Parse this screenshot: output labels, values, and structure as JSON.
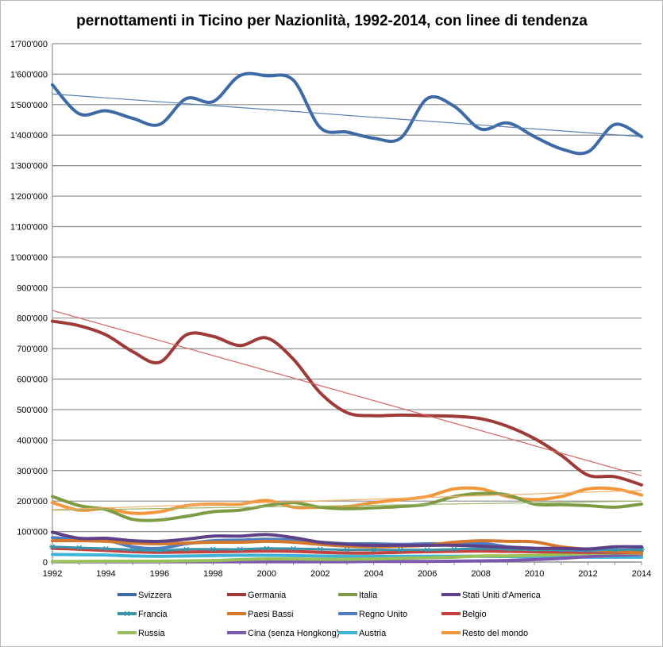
{
  "chart_data": {
    "type": "line",
    "title": "pernottamenti in Ticino per Nazionlità, 1992-2014, con linee di tendenza",
    "xlabel": "",
    "ylabel": "",
    "x": [
      1992,
      1993,
      1994,
      1995,
      1996,
      1997,
      1998,
      1999,
      2000,
      2001,
      2002,
      2003,
      2004,
      2005,
      2006,
      2007,
      2008,
      2009,
      2010,
      2011,
      2012,
      2013,
      2014
    ],
    "x_ticks": [
      1992,
      1994,
      1996,
      1998,
      2000,
      2002,
      2004,
      2006,
      2008,
      2010,
      2012,
      2014
    ],
    "ylim": [
      0,
      1700000
    ],
    "y_ticks": [
      0,
      100000,
      200000,
      300000,
      400000,
      500000,
      600000,
      700000,
      800000,
      900000,
      1000000,
      1100000,
      1200000,
      1300000,
      1400000,
      1500000,
      1600000,
      1700000
    ],
    "y_tick_labels": [
      "0",
      "100'000",
      "200'000",
      "300'000",
      "400'000",
      "500'000",
      "600'000",
      "700'000",
      "800'000",
      "900'000",
      "1'000'000",
      "1'100'000",
      "1'200'000",
      "1'300'000",
      "1'400'000",
      "1'500'000",
      "1'600'000",
      "1'700'000"
    ],
    "grid": true,
    "legend_position": "bottom",
    "series": [
      {
        "name": "Svizzera",
        "color": "#3c6aa6",
        "width": 4,
        "values": [
          1565000,
          1470000,
          1480000,
          1455000,
          1435000,
          1520000,
          1510000,
          1595000,
          1595000,
          1580000,
          1425000,
          1410000,
          1390000,
          1390000,
          1520000,
          1495000,
          1420000,
          1440000,
          1395000,
          1355000,
          1345000,
          1435000,
          1395000
        ]
      },
      {
        "name": "Germania",
        "color": "#9e3b38",
        "width": 4,
        "values": [
          790000,
          775000,
          745000,
          690000,
          655000,
          745000,
          740000,
          710000,
          735000,
          665000,
          555000,
          490000,
          480000,
          482000,
          480000,
          478000,
          470000,
          445000,
          405000,
          350000,
          285000,
          280000,
          253000
        ]
      },
      {
        "name": "Italia",
        "color": "#7e9b44",
        "width": 4,
        "values": [
          215000,
          185000,
          172000,
          140000,
          138000,
          150000,
          165000,
          170000,
          185000,
          195000,
          180000,
          175000,
          178000,
          182000,
          190000,
          215000,
          225000,
          220000,
          190000,
          188000,
          185000,
          180000,
          190000
        ]
      },
      {
        "name": "Stati Uniti d'America",
        "color": "#5e4088",
        "width": 4,
        "values": [
          98000,
          78000,
          78000,
          70000,
          68000,
          75000,
          85000,
          85000,
          90000,
          80000,
          65000,
          58000,
          55000,
          55000,
          55000,
          55000,
          52000,
          48000,
          45000,
          45000,
          43000,
          50000,
          50000
        ]
      },
      {
        "name": "Francia",
        "color": "#3a93a8",
        "width": 3,
        "marker": "star",
        "values": [
          50000,
          47000,
          44000,
          40000,
          38000,
          42000,
          42000,
          42000,
          45000,
          44000,
          42000,
          40000,
          40000,
          40000,
          40000,
          42000,
          44000,
          42000,
          40000,
          40000,
          40000,
          40000,
          42000
        ]
      },
      {
        "name": "Paesi Bassi",
        "color": "#d3782c",
        "width": 4,
        "values": [
          70000,
          70000,
          68000,
          62000,
          60000,
          62000,
          65000,
          65000,
          68000,
          65000,
          58000,
          52000,
          50000,
          52000,
          55000,
          65000,
          70000,
          68000,
          66000,
          50000,
          42000,
          35000,
          30000
        ]
      },
      {
        "name": "Regno Unito",
        "color": "#4f7fc3",
        "width": 4,
        "values": [
          80000,
          75000,
          72000,
          50000,
          45000,
          60000,
          70000,
          72000,
          75000,
          72000,
          65000,
          60000,
          60000,
          58000,
          60000,
          60000,
          62000,
          50000,
          45000,
          40000,
          38000,
          36000,
          35000
        ]
      },
      {
        "name": "Belgio",
        "color": "#c4433f",
        "width": 4,
        "values": [
          45000,
          42000,
          38000,
          34000,
          32000,
          33000,
          34000,
          35000,
          36000,
          35000,
          32000,
          30000,
          30000,
          32000,
          34000,
          35000,
          36000,
          35000,
          34000,
          33000,
          32000,
          32000,
          30000
        ]
      },
      {
        "name": "Russia",
        "color": "#9ac05a",
        "width": 4,
        "values": [
          2000,
          2000,
          3000,
          3000,
          3000,
          4000,
          5000,
          8000,
          10000,
          10000,
          9000,
          9000,
          10000,
          12000,
          14000,
          16000,
          20000,
          20000,
          22000,
          25000,
          28000,
          30000,
          28000
        ]
      },
      {
        "name": "Cina (senza Hongkong)",
        "color": "#7b58ae",
        "width": 4,
        "values": [
          1000,
          1000,
          1000,
          1000,
          1000,
          1000,
          1000,
          1000,
          1000,
          1000,
          1000,
          1000,
          2000,
          2000,
          2000,
          3000,
          4000,
          5000,
          8000,
          12000,
          18000,
          22000,
          25000
        ]
      },
      {
        "name": "Austria",
        "color": "#3fb3d6",
        "width": 4,
        "values": [
          25000,
          24000,
          23000,
          20000,
          19000,
          20000,
          21000,
          22000,
          22000,
          21000,
          20000,
          19000,
          19000,
          19000,
          19000,
          19000,
          19000,
          18000,
          17000,
          17000,
          16000,
          16000,
          16000
        ]
      },
      {
        "name": "Resto del mondo",
        "color": "#f2963b",
        "width": 4,
        "values": [
          195000,
          170000,
          175000,
          160000,
          165000,
          185000,
          190000,
          190000,
          202000,
          180000,
          180000,
          182000,
          195000,
          205000,
          215000,
          240000,
          240000,
          215000,
          205000,
          215000,
          240000,
          240000,
          220000
        ]
      }
    ],
    "trend_lines": [
      {
        "series": "Svizzera",
        "color": "#5a7fb2",
        "values": [
          1535000,
          1395000
        ]
      },
      {
        "series": "Germania",
        "color": "#d66460",
        "values": [
          825000,
          283000
        ]
      },
      {
        "series": "Italia",
        "color": "#9cb86a",
        "values": [
          170000,
          200000
        ]
      },
      {
        "series": "Resto del mondo",
        "color": "#f4ae6a",
        "values": [
          172000,
          235000
        ]
      }
    ]
  }
}
